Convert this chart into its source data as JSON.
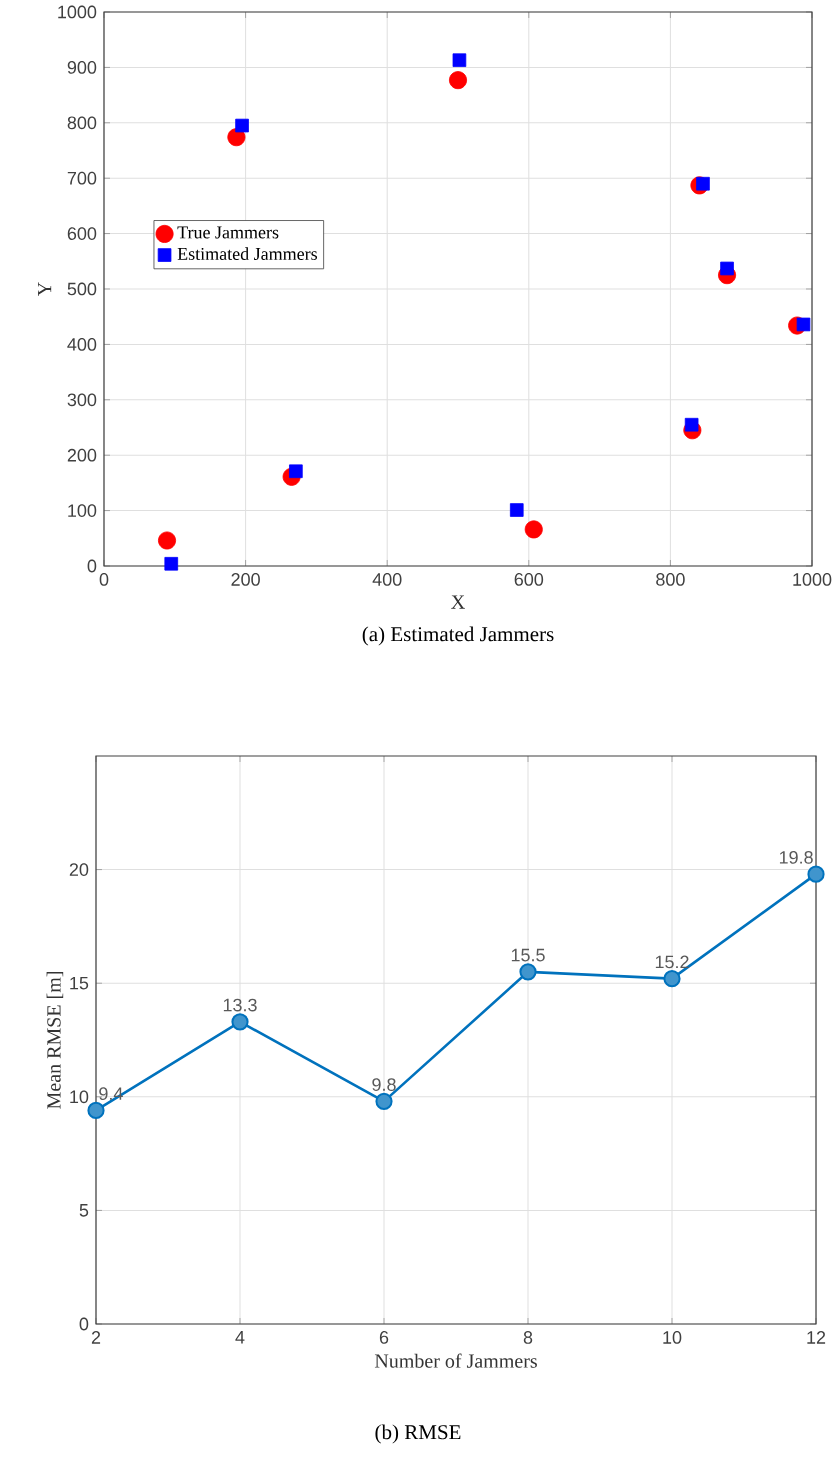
{
  "chart_data": [
    {
      "type": "scatter",
      "title": "(a) Estimated Jammers",
      "xlabel": "X",
      "ylabel": "Y",
      "xlim": [
        0,
        1000
      ],
      "ylim": [
        0,
        1000
      ],
      "xticks": [
        0,
        200,
        400,
        600,
        800,
        1000
      ],
      "yticks": [
        0,
        100,
        200,
        300,
        400,
        500,
        600,
        700,
        800,
        900,
        1000
      ],
      "grid": true,
      "legend": "left",
      "series": [
        {
          "name": "True Jammers",
          "color": "#ff0000",
          "marker": "circle",
          "x": [
            89,
            187,
            265,
            500,
            607,
            831,
            841,
            880,
            979
          ],
          "values": [
            46,
            774,
            161,
            877,
            66,
            245,
            687,
            525,
            434
          ]
        },
        {
          "name": "Estimated Jammers",
          "color": "#0000ff",
          "marker": "square",
          "x": [
            95,
            195,
            271,
            502,
            583,
            830,
            846,
            880,
            988
          ],
          "values": [
            4,
            795,
            171,
            913,
            101,
            255,
            690,
            537,
            436
          ]
        }
      ]
    },
    {
      "type": "line",
      "title": "(b) RMSE",
      "xlabel": "Number of Jammers",
      "ylabel": "Mean RMSE [m]",
      "x": [
        2,
        4,
        6,
        8,
        10,
        12
      ],
      "xlim": [
        2,
        12
      ],
      "ylim": [
        0,
        25
      ],
      "xticks": [
        2,
        4,
        6,
        8,
        10,
        12
      ],
      "yticks": [
        0,
        5,
        10,
        15,
        20
      ],
      "grid": true,
      "marker": "circle",
      "line_style": "solid",
      "data_labels": true,
      "series": [
        {
          "color": "#0072bd",
          "values": [
            9.4,
            13.3,
            9.8,
            15.5,
            15.2,
            19.8
          ]
        }
      ]
    }
  ]
}
